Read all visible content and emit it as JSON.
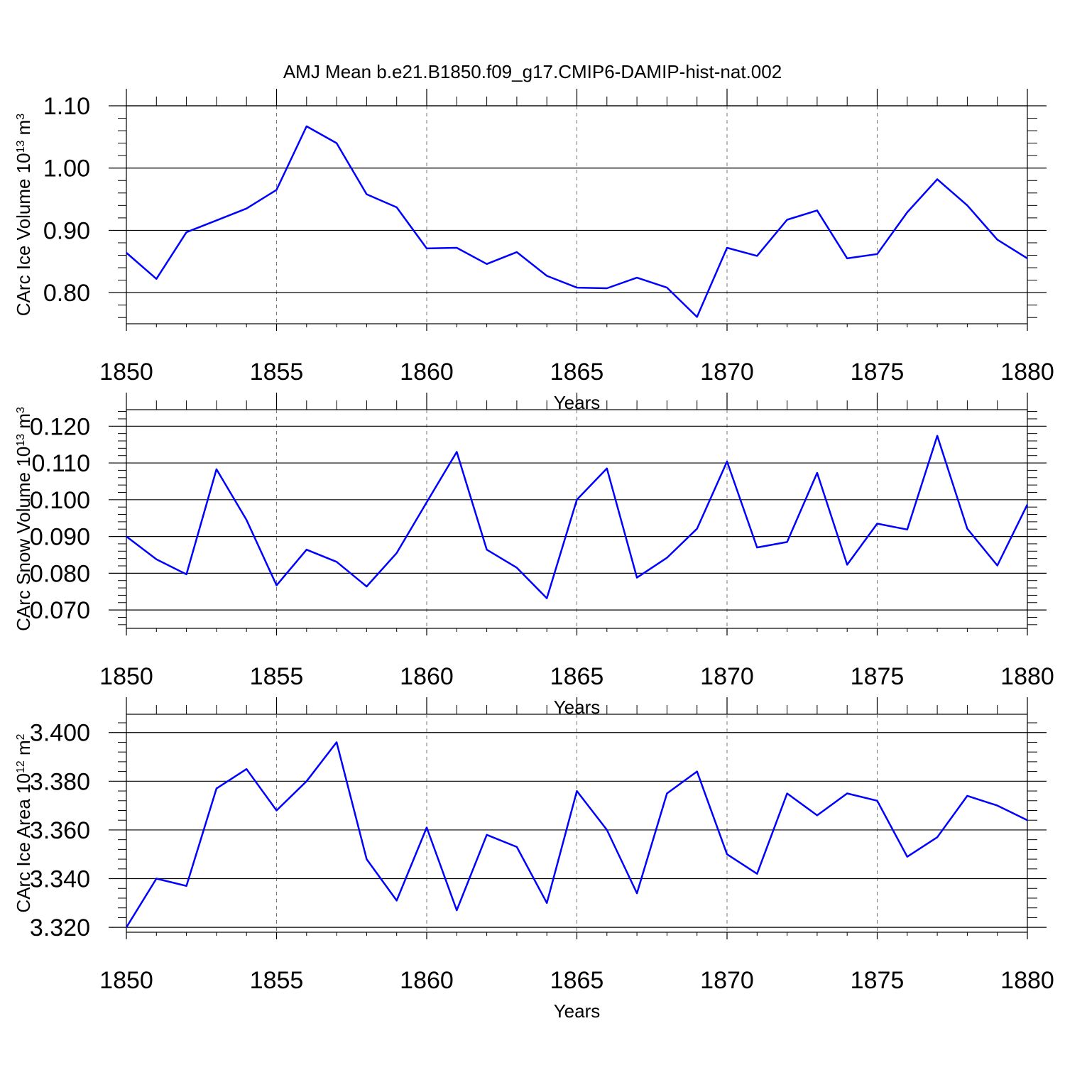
{
  "figure": {
    "title": "AMJ Mean b.e21.B1850.f09_g17.CMIP6-DAMIP-hist-nat.002"
  },
  "colors": {
    "line": "#0000ff",
    "axis": "#000000",
    "grid": "#777777"
  },
  "chart_data": [
    {
      "type": "line",
      "ylabel": "CArc Ice Volume 10",
      "ylabel_exp": "13",
      "ylabel_unit": " m",
      "ylabel_unit_exp": "3",
      "xlabel": "Years",
      "xlim": [
        1850,
        1880
      ],
      "ylim": [
        0.75,
        1.1
      ],
      "xticks": [
        "1850",
        "1855",
        "1860",
        "1865",
        "1870",
        "1875",
        "1880"
      ],
      "yticks": [
        "0.80",
        "0.90",
        "1.00",
        "1.10"
      ],
      "grid": "vertical dashed at major x ticks",
      "x": [
        1850,
        1851,
        1852,
        1853,
        1854,
        1855,
        1856,
        1857,
        1858,
        1859,
        1860,
        1861,
        1862,
        1863,
        1864,
        1865,
        1866,
        1867,
        1868,
        1869,
        1870,
        1871,
        1872,
        1873,
        1874,
        1875,
        1876,
        1877,
        1878,
        1879,
        1880
      ],
      "values": [
        0.864,
        0.822,
        0.897,
        0.916,
        0.935,
        0.965,
        1.067,
        1.04,
        0.958,
        0.937,
        0.871,
        0.872,
        0.846,
        0.865,
        0.827,
        0.808,
        0.807,
        0.824,
        0.808,
        0.761,
        0.872,
        0.859,
        0.917,
        0.932,
        0.855,
        0.862,
        0.929,
        0.982,
        0.94,
        0.885,
        0.855
      ]
    },
    {
      "type": "line",
      "ylabel": "CArc Snow Volume 10",
      "ylabel_exp": "13",
      "ylabel_unit": " m",
      "ylabel_unit_exp": "3",
      "xlabel": "Years",
      "xlim": [
        1850,
        1880
      ],
      "ylim": [
        0.065,
        0.1245
      ],
      "xticks": [
        "1850",
        "1855",
        "1860",
        "1865",
        "1870",
        "1875",
        "1880"
      ],
      "yticks": [
        "0.070",
        "0.080",
        "0.090",
        "0.100",
        "0.110",
        "0.120"
      ],
      "grid": "vertical dashed at major x ticks",
      "x": [
        1850,
        1851,
        1852,
        1853,
        1854,
        1855,
        1856,
        1857,
        1858,
        1859,
        1860,
        1861,
        1862,
        1863,
        1864,
        1865,
        1866,
        1867,
        1868,
        1869,
        1870,
        1871,
        1872,
        1873,
        1874,
        1875,
        1876,
        1877,
        1878,
        1879,
        1880
      ],
      "values": [
        0.09,
        0.0838,
        0.0797,
        0.1083,
        0.0945,
        0.0767,
        0.0864,
        0.0831,
        0.0764,
        0.0855,
        0.0993,
        0.113,
        0.0864,
        0.0815,
        0.0732,
        0.1,
        0.1085,
        0.0788,
        0.0842,
        0.0921,
        0.1104,
        0.087,
        0.0885,
        0.1073,
        0.0823,
        0.0935,
        0.0919,
        0.1174,
        0.0921,
        0.0821,
        0.0987
      ]
    },
    {
      "type": "line",
      "ylabel": "CArc Ice Area 10",
      "ylabel_exp": "12",
      "ylabel_unit": " m",
      "ylabel_unit_exp": "2",
      "xlabel": "Years",
      "xlim": [
        1850,
        1880
      ],
      "ylim": [
        3.318,
        3.4075
      ],
      "xticks": [
        "1850",
        "1855",
        "1860",
        "1865",
        "1870",
        "1875",
        "1880"
      ],
      "yticks": [
        "3.320",
        "3.340",
        "3.360",
        "3.380",
        "3.400"
      ],
      "grid": "vertical dashed at major x ticks",
      "x": [
        1850,
        1851,
        1852,
        1853,
        1854,
        1855,
        1856,
        1857,
        1858,
        1859,
        1860,
        1861,
        1862,
        1863,
        1864,
        1865,
        1866,
        1867,
        1868,
        1869,
        1870,
        1871,
        1872,
        1873,
        1874,
        1875,
        1876,
        1877,
        1878,
        1879,
        1880
      ],
      "values": [
        3.32,
        3.34,
        3.337,
        3.377,
        3.385,
        3.368,
        3.38,
        3.396,
        3.348,
        3.331,
        3.361,
        3.327,
        3.358,
        3.353,
        3.33,
        3.376,
        3.36,
        3.334,
        3.375,
        3.384,
        3.35,
        3.342,
        3.375,
        3.366,
        3.375,
        3.372,
        3.349,
        3.357,
        3.374,
        3.37,
        3.364
      ]
    }
  ]
}
